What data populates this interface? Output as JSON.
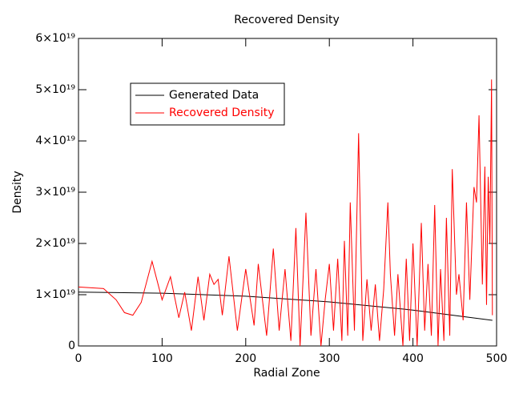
{
  "chart_data": {
    "type": "line",
    "title": "Recovered Density",
    "xlabel": "Radial Zone",
    "ylabel": "Density",
    "xlim": [
      0,
      500
    ],
    "xticks": [
      0,
      100,
      200,
      300,
      400,
      500
    ],
    "ylim": [
      0,
      6e+19
    ],
    "yticks": [
      0,
      {
        "value": 1e+19,
        "label": "1×10¹⁹"
      },
      {
        "value": 2e+19,
        "label": "2×10¹⁹"
      },
      {
        "value": 3e+19,
        "label": "3×10¹⁹"
      },
      {
        "value": 4e+19,
        "label": "4×10¹⁹"
      },
      {
        "value": 5e+19,
        "label": "5×10¹⁹"
      },
      {
        "value": 6e+19,
        "label": "6×10¹⁹"
      }
    ],
    "grid": false,
    "legend": "upper left",
    "series": [
      {
        "name": "Generated Data",
        "color": "#000000",
        "x": [
          0,
          100,
          200,
          300,
          400,
          495
        ],
        "values": [
          1.05e+19,
          1.03e+19,
          9.7e+18,
          8.6e+18,
          7e+18,
          5e+18
        ]
      },
      {
        "name": "Recovered Density",
        "color": "#ff0000",
        "x": [
          0,
          30,
          45,
          55,
          65,
          75,
          88,
          100,
          110,
          120,
          127,
          135,
          143,
          150,
          157,
          162,
          167,
          172,
          180,
          190,
          200,
          210,
          215,
          225,
          233,
          240,
          247,
          254,
          260,
          265,
          268,
          272,
          278,
          284,
          290,
          295,
          300,
          305,
          310,
          315,
          318,
          322,
          325,
          330,
          335,
          340,
          345,
          350,
          355,
          360,
          365,
          370,
          373,
          378,
          382,
          388,
          392,
          396,
          400,
          405,
          410,
          414,
          418,
          422,
          426,
          430,
          433,
          437,
          440,
          444,
          447,
          452,
          455,
          460,
          464,
          468,
          473,
          476,
          479,
          483,
          486,
          488,
          490,
          492,
          494,
          495
        ],
        "values": [
          1.15e+19,
          1.12e+19,
          9e+18,
          6.5e+18,
          6e+18,
          8.5e+18,
          1.65e+19,
          9e+18,
          1.35e+19,
          5.5e+18,
          1.05e+19,
          3e+18,
          1.35e+19,
          5e+18,
          1.4e+19,
          1.2e+19,
          1.3e+19,
          6e+18,
          1.75e+19,
          3e+18,
          1.5e+19,
          4e+18,
          1.6e+19,
          2e+18,
          1.9e+19,
          3e+18,
          1.5e+19,
          1e+18,
          2.3e+19,
          0,
          1.1e+19,
          2.6e+19,
          2e+18,
          1.5e+19,
          0,
          9e+18,
          1.6e+19,
          3e+18,
          1.7e+19,
          1e+18,
          2.05e+19,
          2e+18,
          2.8e+19,
          3e+18,
          4.15e+19,
          1e+18,
          1.3e+19,
          3e+18,
          1.2e+19,
          1e+18,
          1.1e+19,
          2.8e+19,
          1.4e+19,
          2e+18,
          1.4e+19,
          0,
          1.7e+19,
          1e+18,
          2e+19,
          0,
          2.4e+19,
          3e+18,
          1.6e+19,
          2e+18,
          2.75e+19,
          0,
          1.5e+19,
          1e+18,
          2.5e+19,
          2e+18,
          3.45e+19,
          1e+19,
          1.4e+19,
          5e+18,
          2.8e+19,
          9e+18,
          3.1e+19,
          2.8e+19,
          4.5e+19,
          1.2e+19,
          3.5e+19,
          8e+18,
          3.3e+19,
          2e+19,
          5.2e+19,
          6e+18
        ]
      }
    ]
  }
}
